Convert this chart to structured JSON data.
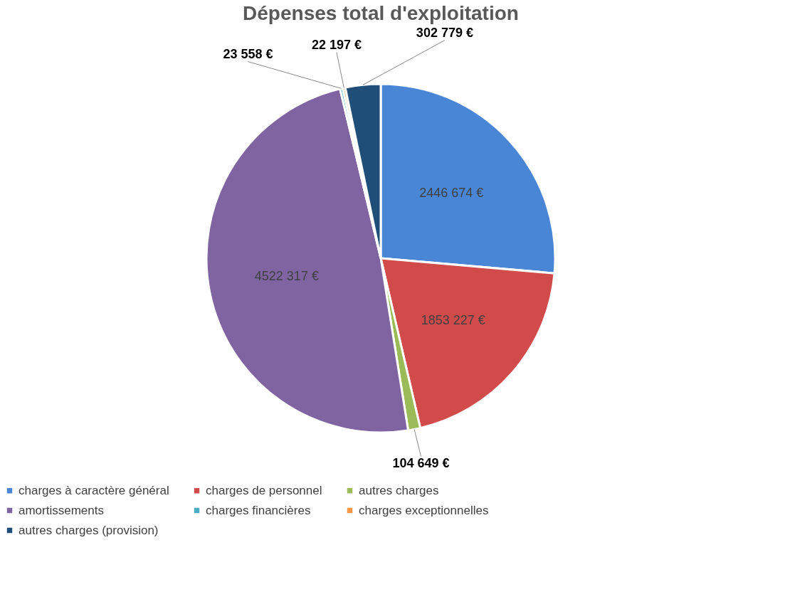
{
  "chart_data": {
    "type": "pie",
    "title": "Dépenses total d'exploitation",
    "categories": [
      "charges à caractère général",
      "charges de personnel",
      "autres charges",
      "amortissements",
      "charges financières",
      "charges exceptionnelles",
      "autres charges (provision)"
    ],
    "values": [
      2446674,
      1853227,
      104649,
      4522317,
      23558,
      22197,
      302779
    ],
    "colors": [
      "#4a86d6",
      "#d24b4b",
      "#9bbb59",
      "#8064a2",
      "#4bacc6",
      "#f79646",
      "#1f4e79"
    ],
    "value_labels": [
      "2446 674 €",
      "1853 227 €",
      "104 649 €",
      "4522 317 €",
      "23 558 €",
      "22 197 €",
      "302 779 €"
    ],
    "legend": "bottom"
  }
}
